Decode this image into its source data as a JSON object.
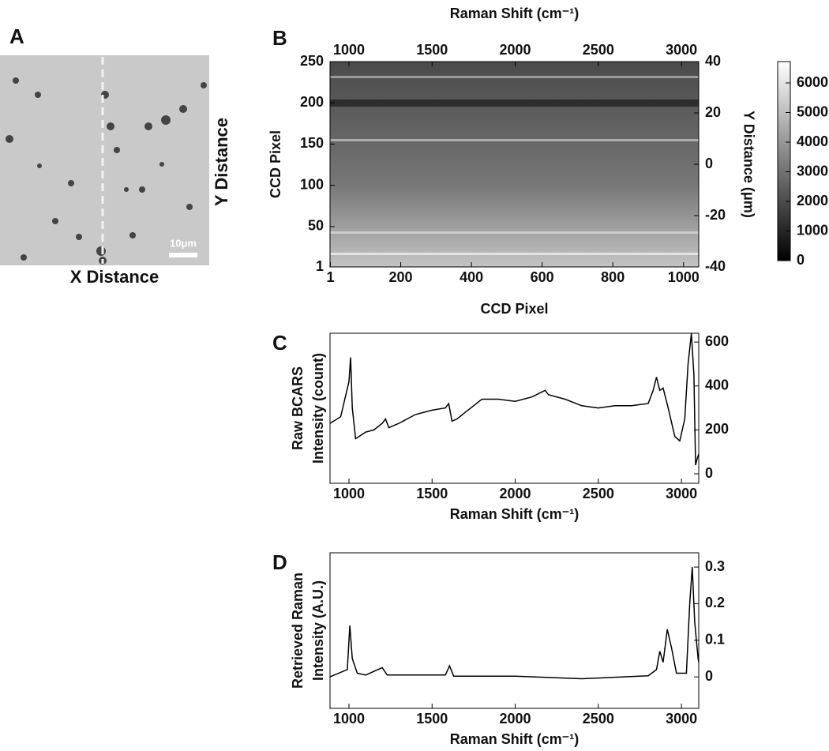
{
  "image_panel": {
    "label": "A",
    "xlabel": "X Distance",
    "ylabel": "Y Distance",
    "scale_bar": "10μm"
  },
  "chart_data": [
    {
      "type": "heatmap",
      "label": "B",
      "xlabel": "CCD Pixel",
      "x2label": "Raman Shift (cm⁻¹)",
      "ylabel": "CCD Pixel",
      "y2label": "Y Distance (μm)",
      "xlim": [
        0,
        1043
      ],
      "xticks": [
        1,
        200,
        400,
        600,
        800,
        1000
      ],
      "x2lim": [
        886,
        3104
      ],
      "x2ticks": [
        1000,
        1500,
        2000,
        2500,
        3000
      ],
      "ylim": [
        1,
        250
      ],
      "yticks": [
        1,
        50,
        100,
        150,
        200,
        250
      ],
      "y2lim": [
        -40,
        40
      ],
      "y2ticks": [
        -40,
        -20,
        0,
        20,
        40
      ],
      "clim": [
        0,
        6720
      ],
      "cticks": [
        0,
        1000,
        2000,
        3000,
        4000,
        5000,
        6000
      ]
    },
    {
      "type": "line",
      "label": "C",
      "xlabel": "Raman Shift (cm⁻¹)",
      "ylabel": [
        "Raw BCARS",
        "Intensity (count)"
      ],
      "xlim": [
        886,
        3104
      ],
      "xticks": [
        1000,
        1500,
        2000,
        2500,
        3000
      ],
      "ylim": [
        -43,
        640
      ],
      "yticks": [
        0,
        200,
        400,
        600
      ],
      "color": "#000000",
      "x": [
        886,
        950,
        1000,
        1010,
        1020,
        1040,
        1060,
        1100,
        1150,
        1200,
        1220,
        1240,
        1300,
        1400,
        1500,
        1580,
        1600,
        1620,
        1650,
        1700,
        1800,
        1900,
        2000,
        2100,
        2180,
        2200,
        2300,
        2400,
        2500,
        2600,
        2700,
        2800,
        2830,
        2850,
        2870,
        2890,
        2920,
        2960,
        2990,
        3020,
        3040,
        3060,
        3075,
        3085,
        3095,
        3104
      ],
      "values": [
        230,
        260,
        420,
        530,
        300,
        160,
        170,
        190,
        200,
        230,
        250,
        210,
        230,
        270,
        290,
        300,
        320,
        240,
        250,
        280,
        340,
        340,
        330,
        350,
        380,
        360,
        340,
        310,
        300,
        310,
        310,
        320,
        380,
        440,
        380,
        390,
        300,
        170,
        150,
        250,
        500,
        640,
        450,
        40,
        70,
        90
      ]
    },
    {
      "type": "line",
      "label": "D",
      "xlabel": "Raman Shift (cm⁻¹)",
      "ylabel": [
        "Retrieved Raman",
        "Intensity (A.U.)"
      ],
      "xlim": [
        886,
        3104
      ],
      "xticks": [
        1000,
        1500,
        2000,
        2500,
        3000
      ],
      "ylim": [
        -0.086,
        0.339
      ],
      "yticks": [
        0,
        0.1,
        0.2,
        0.3
      ],
      "color": "#000000",
      "x": [
        886,
        990,
        1005,
        1020,
        1050,
        1100,
        1200,
        1230,
        1400,
        1580,
        1605,
        1630,
        2000,
        2400,
        2800,
        2850,
        2870,
        2890,
        2915,
        2940,
        2970,
        3030,
        3050,
        3065,
        3080,
        3100,
        3104
      ],
      "values": [
        0,
        0.02,
        0.14,
        0.05,
        0.01,
        0.005,
        0.025,
        0.005,
        0.005,
        0.005,
        0.03,
        0.002,
        0.002,
        -0.005,
        0.003,
        0.02,
        0.07,
        0.04,
        0.13,
        0.08,
        0.01,
        0.01,
        0.2,
        0.3,
        0.15,
        0.05,
        0.04
      ]
    }
  ]
}
